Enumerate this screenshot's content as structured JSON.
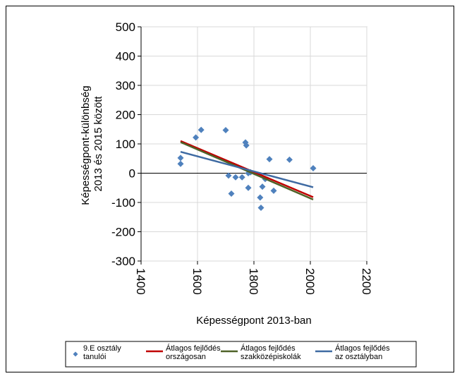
{
  "chart_data": {
    "type": "scatter",
    "xlabel": "Képességpont 2013-ban",
    "ylabel": [
      "Képességpont-különbség",
      "2013 és 2015 között"
    ],
    "xlim": [
      1400,
      2200
    ],
    "ylim": [
      -300,
      500
    ],
    "x_ticks": [
      "1400",
      "1600",
      "1800",
      "2000",
      "2200"
    ],
    "y_ticks": [
      "500",
      "400",
      "300",
      "200",
      "100",
      "0",
      "-100",
      "-200",
      "-300"
    ],
    "grid": true,
    "legend_position": "bottom",
    "series": [
      {
        "name": [
          "9.E osztály",
          "tanulói"
        ],
        "kind": "scatter",
        "marker": "diamond",
        "color": "#4f81bd",
        "points": [
          [
            1540,
            52
          ],
          [
            1540,
            32
          ],
          [
            1594,
            122
          ],
          [
            1613,
            148
          ],
          [
            1700,
            147
          ],
          [
            1710,
            -8
          ],
          [
            1720,
            -70
          ],
          [
            1735,
            -14
          ],
          [
            1758,
            -14
          ],
          [
            1770,
            105
          ],
          [
            1773,
            95
          ],
          [
            1780,
            -50
          ],
          [
            1780,
            0
          ],
          [
            1788,
            3
          ],
          [
            1822,
            -83
          ],
          [
            1825,
            -118
          ],
          [
            1830,
            -46
          ],
          [
            1840,
            -20
          ],
          [
            1855,
            48
          ],
          [
            1870,
            -60
          ],
          [
            1926,
            46
          ],
          [
            2010,
            17
          ]
        ]
      },
      {
        "name": [
          "Átlagos fejlődés",
          "országosan"
        ],
        "kind": "line",
        "color": "#c00000",
        "points": [
          [
            1540,
            110
          ],
          [
            2010,
            -82
          ]
        ]
      },
      {
        "name": [
          "Átlagos fejlődés",
          "szakközépiskolák"
        ],
        "kind": "line",
        "color": "#4f6228",
        "points": [
          [
            1540,
            106
          ],
          [
            2010,
            -90
          ]
        ]
      },
      {
        "name": [
          "Átlagos fejlődés",
          "az osztályban"
        ],
        "kind": "line",
        "color": "#3e6aa2",
        "points": [
          [
            1540,
            73
          ],
          [
            2010,
            -48
          ]
        ]
      }
    ]
  }
}
